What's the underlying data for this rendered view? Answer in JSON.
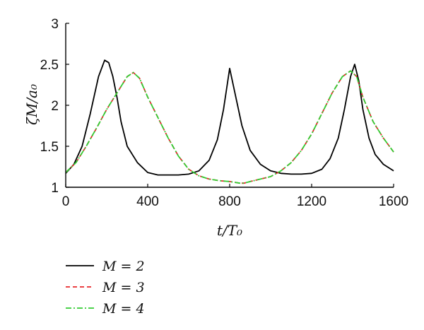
{
  "chart_data": {
    "type": "line",
    "xlabel": "t/T₀",
    "ylabel": "ζM/a₀",
    "xlim": [
      0,
      1600
    ],
    "ylim": [
      1,
      3
    ],
    "xticks": [
      "0",
      "400",
      "800",
      "1200",
      "1600"
    ],
    "yticks": [
      "1",
      "1.5",
      "2",
      "2.5",
      "3"
    ],
    "grid": false,
    "legend_position": "bottom-left",
    "series": [
      {
        "name": "M = 2",
        "color": "#000000",
        "dash": "solid",
        "x": [
          0,
          40,
          80,
          120,
          160,
          190,
          210,
          230,
          250,
          270,
          300,
          350,
          400,
          450,
          500,
          550,
          600,
          650,
          700,
          740,
          770,
          800,
          830,
          860,
          900,
          950,
          1000,
          1050,
          1100,
          1150,
          1200,
          1250,
          1290,
          1330,
          1360,
          1390,
          1410,
          1430,
          1450,
          1480,
          1510,
          1550,
          1600
        ],
        "y": [
          1.17,
          1.28,
          1.5,
          1.9,
          2.35,
          2.55,
          2.52,
          2.35,
          2.1,
          1.8,
          1.5,
          1.3,
          1.18,
          1.15,
          1.15,
          1.15,
          1.16,
          1.2,
          1.33,
          1.58,
          1.95,
          2.45,
          2.1,
          1.75,
          1.45,
          1.28,
          1.2,
          1.17,
          1.16,
          1.16,
          1.17,
          1.22,
          1.35,
          1.6,
          1.95,
          2.35,
          2.5,
          2.3,
          1.95,
          1.6,
          1.4,
          1.28,
          1.2
        ]
      },
      {
        "name": "M = 3",
        "color": "#e8272b",
        "dash": "dashed",
        "x": [
          0,
          50,
          100,
          150,
          200,
          250,
          300,
          330,
          360,
          400,
          450,
          500,
          550,
          600,
          650,
          700,
          750,
          800,
          850,
          870,
          900,
          950,
          1000,
          1050,
          1100,
          1150,
          1200,
          1250,
          1300,
          1350,
          1390,
          1420,
          1450,
          1500,
          1550,
          1600
        ],
        "y": [
          1.18,
          1.3,
          1.5,
          1.72,
          1.95,
          2.15,
          2.35,
          2.4,
          2.33,
          2.1,
          1.85,
          1.6,
          1.38,
          1.22,
          1.14,
          1.1,
          1.08,
          1.07,
          1.05,
          1.05,
          1.07,
          1.1,
          1.13,
          1.2,
          1.3,
          1.45,
          1.65,
          1.9,
          2.15,
          2.35,
          2.42,
          2.35,
          2.1,
          1.8,
          1.6,
          1.43
        ]
      },
      {
        "name": "M = 4",
        "color": "#33cc33",
        "dash": "dashdot",
        "x": [
          0,
          50,
          100,
          150,
          200,
          250,
          300,
          330,
          360,
          400,
          450,
          500,
          550,
          600,
          650,
          700,
          750,
          800,
          850,
          870,
          900,
          950,
          1000,
          1050,
          1100,
          1150,
          1200,
          1250,
          1300,
          1350,
          1390,
          1420,
          1450,
          1500,
          1550,
          1600
        ],
        "y": [
          1.18,
          1.3,
          1.5,
          1.72,
          1.95,
          2.15,
          2.35,
          2.4,
          2.33,
          2.1,
          1.85,
          1.6,
          1.38,
          1.22,
          1.14,
          1.1,
          1.08,
          1.07,
          1.05,
          1.05,
          1.07,
          1.1,
          1.13,
          1.2,
          1.3,
          1.45,
          1.65,
          1.9,
          2.15,
          2.35,
          2.42,
          2.35,
          2.1,
          1.8,
          1.6,
          1.43
        ]
      }
    ]
  }
}
